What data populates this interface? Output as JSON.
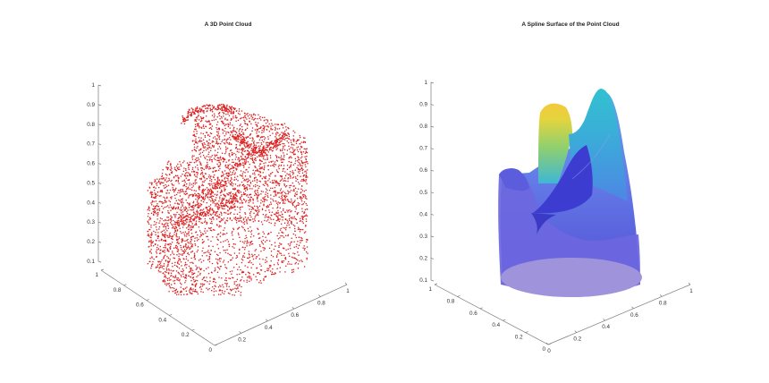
{
  "chart_data": [
    {
      "type": "scatter",
      "subtype": "3d-point-cloud",
      "title": "A 3D Point Cloud",
      "xlabel": "",
      "ylabel": "",
      "zlabel": "",
      "xlim": [
        0,
        1
      ],
      "ylim": [
        0,
        1
      ],
      "zlim": [
        0.1,
        1
      ],
      "x_ticks": [
        "0.2",
        "0.4",
        "0.6",
        "0.8",
        "1"
      ],
      "y_ticks": [
        "0",
        "0.2",
        "0.4",
        "0.6",
        "0.8",
        "1"
      ],
      "z_ticks": [
        "0.1",
        "0.2",
        "0.3",
        "0.4",
        "0.5",
        "0.6",
        "0.7",
        "0.8",
        "0.9",
        "1"
      ],
      "point_color": "#dd2020",
      "grid": false
    },
    {
      "type": "surface",
      "subtype": "3d-spline-surface",
      "title": "A Spline Surface of the Point Cloud",
      "xlabel": "",
      "ylabel": "",
      "zlabel": "",
      "xlim": [
        0,
        1
      ],
      "ylim": [
        0,
        1
      ],
      "zlim": [
        0.1,
        1
      ],
      "x_ticks": [
        "0",
        "0.2",
        "0.4",
        "0.6",
        "0.8",
        "1"
      ],
      "y_ticks": [
        "0",
        "0.2",
        "0.4",
        "0.6",
        "0.8",
        "1"
      ],
      "z_ticks": [
        "0.1",
        "0.2",
        "0.3",
        "0.4",
        "0.5",
        "0.6",
        "0.7",
        "0.8",
        "0.9",
        "1"
      ],
      "colormap": [
        "#4a3fd0",
        "#5a6ae6",
        "#3fb3d8",
        "#9ad46a",
        "#f2d43a"
      ],
      "grid": false
    }
  ]
}
